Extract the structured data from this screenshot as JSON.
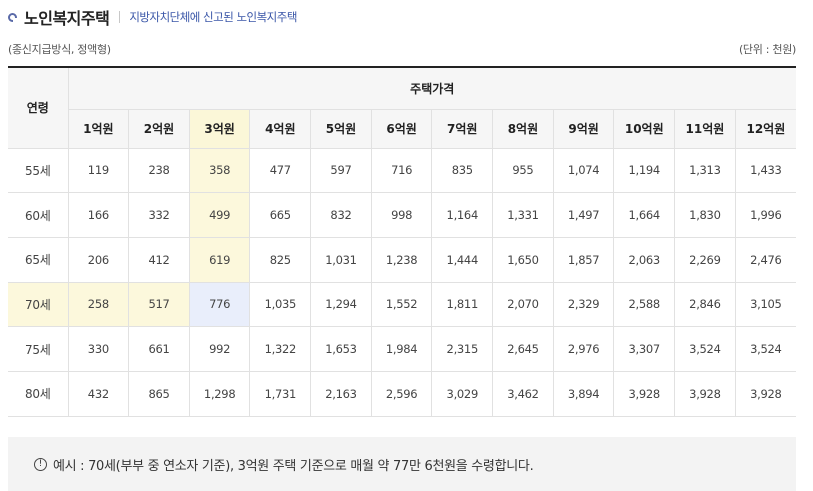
{
  "header": {
    "title": "노인복지주택",
    "subtitle": "지방자치단체에 신고된 노인복지주택"
  },
  "meta": {
    "payment_method": "(종신지급방식, 정액형)",
    "unit": "(단위 : 천원)"
  },
  "table": {
    "age_header": "연령",
    "price_group_header": "주택가격",
    "price_columns": [
      "1억원",
      "2억원",
      "3억원",
      "4억원",
      "5억원",
      "6억원",
      "7억원",
      "8억원",
      "9억원",
      "10억원",
      "11억원",
      "12억원"
    ],
    "rows": [
      {
        "age": "55세",
        "values": [
          "119",
          "238",
          "358",
          "477",
          "597",
          "716",
          "835",
          "955",
          "1,074",
          "1,194",
          "1,313",
          "1,433"
        ]
      },
      {
        "age": "60세",
        "values": [
          "166",
          "332",
          "499",
          "665",
          "832",
          "998",
          "1,164",
          "1,331",
          "1,497",
          "1,664",
          "1,830",
          "1,996"
        ]
      },
      {
        "age": "65세",
        "values": [
          "206",
          "412",
          "619",
          "825",
          "1,031",
          "1,238",
          "1,444",
          "1,650",
          "1,857",
          "2,063",
          "2,269",
          "2,476"
        ]
      },
      {
        "age": "70세",
        "values": [
          "258",
          "517",
          "776",
          "1,035",
          "1,294",
          "1,552",
          "1,811",
          "2,070",
          "2,329",
          "2,588",
          "2,846",
          "3,105"
        ]
      },
      {
        "age": "75세",
        "values": [
          "330",
          "661",
          "992",
          "1,322",
          "1,653",
          "1,984",
          "2,315",
          "2,645",
          "2,976",
          "3,307",
          "3,524",
          "3,524"
        ]
      },
      {
        "age": "80세",
        "values": [
          "432",
          "865",
          "1,298",
          "1,731",
          "2,163",
          "2,596",
          "3,029",
          "3,462",
          "3,894",
          "3,928",
          "3,928",
          "3,928"
        ]
      }
    ],
    "highlight": {
      "column": "3억원",
      "row": "70세"
    },
    "colors": {
      "highlight_yellow": "#fcf8dc",
      "highlight_blue": "#e9eefb",
      "header_bg": "#f6f6f6"
    }
  },
  "example": {
    "icon": "info-circle-icon",
    "icon_glyph": "!",
    "text": "예시 : 70세(부부 중 연소자 기준), 3억원 주택 기준으로 매월 약 77만 6천원을 수령합니다."
  }
}
